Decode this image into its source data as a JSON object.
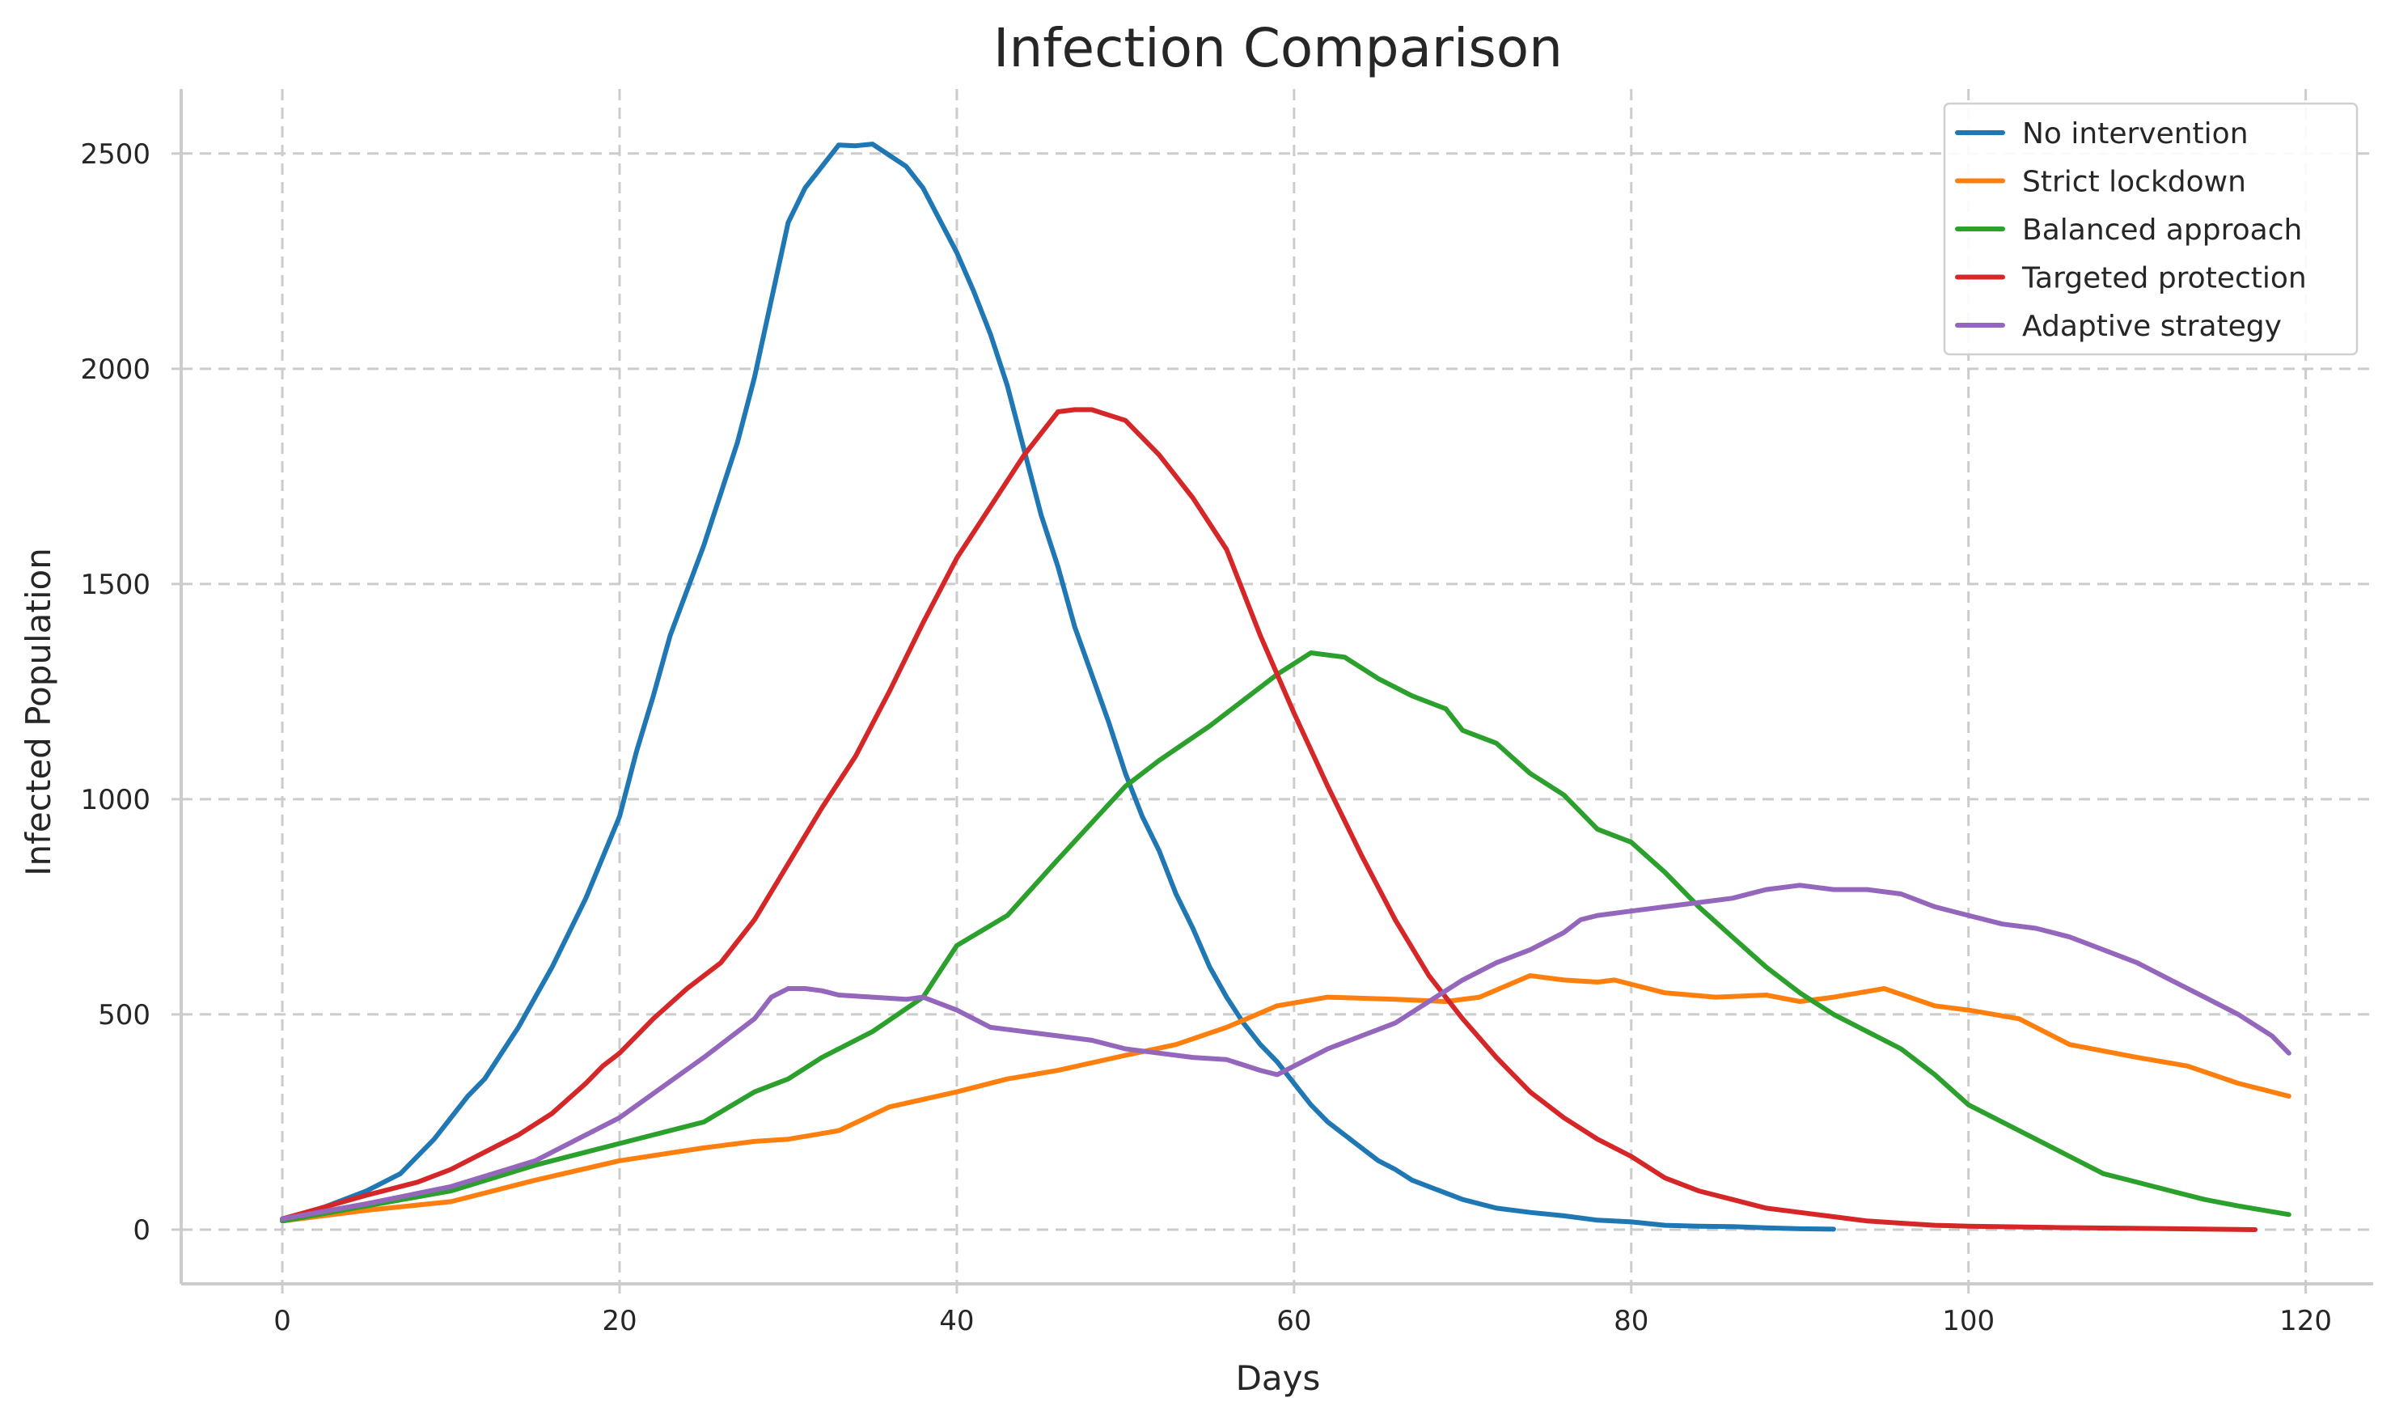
{
  "chart_data": {
    "type": "line",
    "title": "Infection Comparison",
    "xlabel": "Days",
    "ylabel": "Infected Population",
    "xlim": [
      -6,
      124
    ],
    "ylim": [
      -126,
      2650
    ],
    "xticks": [
      0,
      20,
      40,
      60,
      80,
      100,
      120
    ],
    "yticks": [
      0,
      500,
      1000,
      1500,
      2000,
      2500
    ],
    "grid": true,
    "legend_position": "top-right",
    "series": [
      {
        "name": "No intervention",
        "color": "#1f77b4",
        "x": [
          0,
          2,
          5,
          7,
          9,
          11,
          12,
          14,
          16,
          18,
          20,
          21,
          22,
          23,
          25,
          27,
          28,
          30,
          31,
          33,
          34,
          35,
          37,
          38,
          40,
          41,
          42,
          43,
          45,
          46,
          47,
          48,
          49,
          50,
          51,
          52,
          53,
          54,
          55,
          56,
          57,
          58,
          59,
          60,
          61,
          62,
          63,
          64,
          65,
          66,
          67,
          68,
          70,
          72,
          74,
          76,
          78,
          80,
          82,
          84,
          86,
          88,
          90,
          92
        ],
        "values": [
          25,
          45,
          90,
          130,
          210,
          310,
          350,
          470,
          610,
          770,
          960,
          1110,
          1240,
          1380,
          1590,
          1830,
          1980,
          2340,
          2420,
          2520,
          2518,
          2522,
          2470,
          2420,
          2270,
          2180,
          2080,
          1960,
          1660,
          1540,
          1400,
          1290,
          1180,
          1060,
          960,
          880,
          780,
          700,
          610,
          540,
          480,
          430,
          390,
          340,
          290,
          250,
          220,
          190,
          160,
          140,
          115,
          100,
          70,
          50,
          40,
          32,
          22,
          18,
          10,
          8,
          7,
          4,
          2,
          1
        ]
      },
      {
        "name": "Strict lockdown",
        "color": "#ff7f0e",
        "x": [
          0,
          5,
          10,
          15,
          20,
          25,
          28,
          30,
          33,
          36,
          40,
          43,
          46,
          50,
          53,
          56,
          59,
          62,
          66,
          69,
          71,
          74,
          76,
          78,
          79,
          82,
          85,
          88,
          90,
          92,
          95,
          98,
          100,
          103,
          106,
          110,
          113,
          116,
          119
        ],
        "values": [
          20,
          45,
          65,
          115,
          160,
          190,
          205,
          210,
          230,
          285,
          320,
          350,
          370,
          405,
          430,
          470,
          520,
          540,
          535,
          530,
          540,
          590,
          580,
          575,
          580,
          550,
          540,
          545,
          530,
          540,
          560,
          520,
          510,
          490,
          430,
          400,
          380,
          340,
          310
        ]
      },
      {
        "name": "Balanced approach",
        "color": "#2ca02c",
        "x": [
          0,
          5,
          10,
          15,
          20,
          25,
          28,
          30,
          32,
          35,
          38,
          40,
          43,
          46,
          50,
          52,
          55,
          57,
          59,
          61,
          63,
          65,
          67,
          69,
          70,
          72,
          74,
          76,
          78,
          80,
          82,
          84,
          86,
          88,
          90,
          92,
          94,
          96,
          98,
          100,
          102,
          104,
          106,
          108,
          110,
          112,
          114,
          116,
          119
        ],
        "values": [
          20,
          55,
          90,
          150,
          200,
          250,
          320,
          350,
          400,
          460,
          540,
          660,
          730,
          860,
          1030,
          1090,
          1170,
          1230,
          1290,
          1340,
          1330,
          1280,
          1240,
          1210,
          1160,
          1130,
          1060,
          1010,
          930,
          900,
          830,
          750,
          680,
          610,
          550,
          500,
          460,
          420,
          360,
          290,
          250,
          210,
          170,
          130,
          110,
          90,
          70,
          55,
          35
        ]
      },
      {
        "name": "Targeted protection",
        "color": "#d62728",
        "x": [
          0,
          5,
          8,
          10,
          12,
          14,
          16,
          18,
          19,
          20,
          22,
          24,
          26,
          28,
          30,
          32,
          34,
          36,
          38,
          40,
          42,
          44,
          46,
          47,
          48,
          50,
          52,
          54,
          56,
          58,
          60,
          62,
          64,
          66,
          68,
          70,
          72,
          74,
          76,
          78,
          80,
          82,
          84,
          86,
          88,
          90,
          92,
          94,
          96,
          98,
          100,
          105,
          110,
          117
        ],
        "values": [
          25,
          80,
          110,
          140,
          180,
          220,
          270,
          340,
          380,
          410,
          490,
          560,
          620,
          720,
          850,
          980,
          1100,
          1250,
          1410,
          1560,
          1680,
          1800,
          1900,
          1905,
          1905,
          1880,
          1800,
          1700,
          1580,
          1380,
          1200,
          1030,
          870,
          720,
          590,
          490,
          400,
          320,
          260,
          210,
          170,
          120,
          90,
          70,
          50,
          40,
          30,
          20,
          15,
          10,
          8,
          5,
          3,
          0
        ]
      },
      {
        "name": "Adaptive strategy",
        "color": "#9467bd",
        "x": [
          0,
          5,
          10,
          15,
          20,
          25,
          28,
          29,
          30,
          31,
          32,
          33,
          35,
          37,
          38,
          40,
          42,
          44,
          46,
          48,
          50,
          52,
          54,
          56,
          58,
          59,
          60,
          62,
          64,
          66,
          68,
          70,
          72,
          74,
          76,
          77,
          78,
          80,
          82,
          84,
          86,
          88,
          90,
          92,
          94,
          96,
          98,
          100,
          102,
          104,
          106,
          108,
          110,
          112,
          114,
          116,
          118,
          119
        ],
        "values": [
          25,
          60,
          100,
          160,
          260,
          400,
          490,
          540,
          560,
          560,
          555,
          545,
          540,
          535,
          540,
          510,
          470,
          460,
          450,
          440,
          420,
          410,
          400,
          395,
          370,
          360,
          380,
          420,
          450,
          480,
          530,
          580,
          620,
          650,
          690,
          720,
          730,
          740,
          750,
          760,
          770,
          790,
          800,
          790,
          790,
          780,
          750,
          730,
          710,
          700,
          680,
          650,
          620,
          580,
          540,
          500,
          450,
          410
        ]
      }
    ]
  }
}
